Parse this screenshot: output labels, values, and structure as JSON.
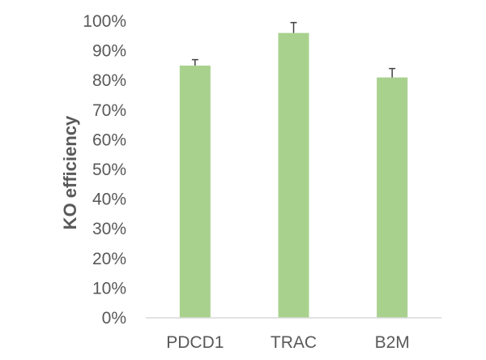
{
  "chart_data": {
    "type": "bar",
    "title": "",
    "xlabel": "",
    "ylabel": "KO efficiency",
    "categories": [
      "PDCD1",
      "TRAC",
      "B2M"
    ],
    "values": [
      85,
      96,
      81
    ],
    "error_bars": [
      2,
      3.5,
      3
    ],
    "ylim": [
      0,
      100
    ],
    "y_ticks": [
      0,
      10,
      20,
      30,
      40,
      50,
      60,
      70,
      80,
      90,
      100
    ],
    "y_tick_format": "percent",
    "grid": false,
    "legend": "none",
    "bar_color": "#a9d18e",
    "axis_color": "#d9d9d9",
    "text_color": "#595959",
    "error_bar_color": "#404040"
  }
}
